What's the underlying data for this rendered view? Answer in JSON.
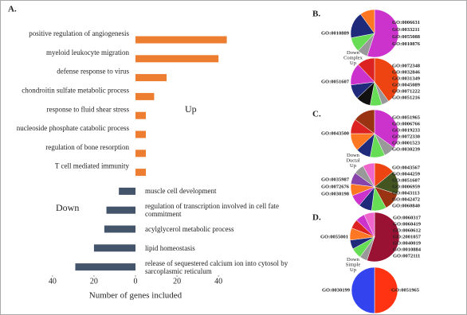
{
  "chart_data": [
    {
      "type": "bar",
      "orientation": "horizontal",
      "panel": "A.",
      "categories": [
        "positive regulation of angiogenesis",
        "myeloid leukocyte migration",
        "defense response to virus",
        "chondroitin sulfate metabolic process",
        "response to fluid shear stress",
        "nucleoside phosphate catabolic process",
        "regulation of bone resorption",
        "T cell mediated immunity",
        "muscle cell development",
        "regulation of transcription involved in cell fate commitment",
        "acylglycerol metabolic process",
        "lipid homeostasis",
        "release of sequestered calcium ion into cytosol by sarcoplasmic reticulum"
      ],
      "series": [
        {
          "name": "Up",
          "color": "#ed7d31",
          "values": [
            44,
            40,
            15,
            9,
            5,
            5,
            5,
            5,
            null,
            null,
            null,
            null,
            null
          ]
        },
        {
          "name": "Down",
          "color": "#44546a",
          "values": [
            null,
            null,
            null,
            null,
            null,
            null,
            null,
            null,
            -8,
            -14,
            -15,
            -20,
            -29
          ]
        }
      ],
      "xlabel": "Number of genes included",
      "xlim": [
        -48,
        48
      ],
      "xticks": [
        {
          "value": -40,
          "label": "40"
        },
        {
          "value": -20,
          "label": "20"
        },
        0,
        20,
        40
      ]
    },
    {
      "type": "pie",
      "categories": [
        "GO:0010889",
        "GO:0006631",
        "GO:0033211",
        "GO:0055088",
        "GO:0010876"
      ],
      "values": [
        55,
        7,
        10,
        18,
        10
      ],
      "colors": [
        "#cc33cc",
        "#999999",
        "#66dd55",
        "#1f2a7a",
        "#ff7722"
      ],
      "label_sides": [
        "left",
        "right",
        "right",
        "right",
        "right"
      ]
    },
    {
      "type": "pie",
      "categories": [
        "GO:0051607",
        "GO:0072348",
        "GO:0032846",
        "GO:0031349",
        "GO:0045089",
        "GO:0071222",
        "GO:0051216"
      ],
      "values": [
        40,
        5,
        8,
        10,
        10,
        15,
        12
      ],
      "colors": [
        "#ee4411",
        "#999999",
        "#66dd55",
        "#111111",
        "#1f2a7a",
        "#cc33cc",
        "#dd2222"
      ],
      "label_sides": [
        "left",
        "right",
        "right",
        "right",
        "right",
        "right",
        "right"
      ]
    },
    {
      "type": "pie",
      "categories": [
        "GO:0043500",
        "GO:0051965",
        "GO:0006766",
        "GO:0019233",
        "GO:0072330",
        "GO:0001523",
        "GO:0030239"
      ],
      "values": [
        35,
        8,
        10,
        10,
        12,
        10,
        15
      ],
      "colors": [
        "#cc33cc",
        "#999999",
        "#66dd55",
        "#1f2a7a",
        "#ff7722",
        "#dd2222",
        "#993311"
      ],
      "label_sides": [
        "left",
        "right",
        "right",
        "right",
        "right",
        "right",
        "right"
      ]
    },
    {
      "type": "pie",
      "categories": [
        "GO:0035987",
        "GO:0072676",
        "GO:0030198",
        "GO:0043567",
        "GO:0044259",
        "GO:0051607",
        "GO:0006959",
        "GO:0043113",
        "GO:0042472",
        "GO:0060840"
      ],
      "values": [
        14,
        16,
        12,
        10,
        9,
        8,
        8,
        8,
        7,
        8
      ],
      "colors": [
        "#ee4411",
        "#445522",
        "#993311",
        "#66dd55",
        "#1f2a7a",
        "#cc33cc",
        "#ff7722",
        "#8844aa",
        "#999999",
        "#ee66cc"
      ],
      "label_sides": [
        "left",
        "left",
        "left",
        "right",
        "right",
        "right",
        "right",
        "right",
        "right",
        "right"
      ]
    },
    {
      "type": "pie",
      "categories": [
        "GO:0055001",
        "GO:0060317",
        "GO:0060419",
        "GO:0060612",
        "GO:2001057",
        "GO:0040019",
        "GO:0010884",
        "GO:0072111"
      ],
      "values": [
        55,
        5,
        7,
        6,
        8,
        6,
        6,
        7
      ],
      "colors": [
        "#991133",
        "#999999",
        "#66dd55",
        "#1f2a7a",
        "#ff7722",
        "#dd2222",
        "#cc33cc",
        "#ee66cc"
      ],
      "label_sides": [
        "left",
        "right",
        "right",
        "right",
        "right",
        "right",
        "right",
        "right"
      ]
    },
    {
      "type": "pie",
      "categories": [
        "GO:0030199",
        "GO:0051965"
      ],
      "values": [
        50,
        50
      ],
      "colors": [
        "#ff3311",
        "#3344ee"
      ],
      "label_sides": [
        "left",
        "right"
      ]
    }
  ],
  "panels": [
    {
      "letter": "B.",
      "group": [
        "Down",
        "Complex",
        "Up"
      ]
    },
    {
      "letter": "C.",
      "group": [
        "Down",
        "Ductal",
        "Up"
      ]
    },
    {
      "letter": "D.",
      "group": [
        "Down",
        "Simple",
        "Up"
      ]
    }
  ]
}
